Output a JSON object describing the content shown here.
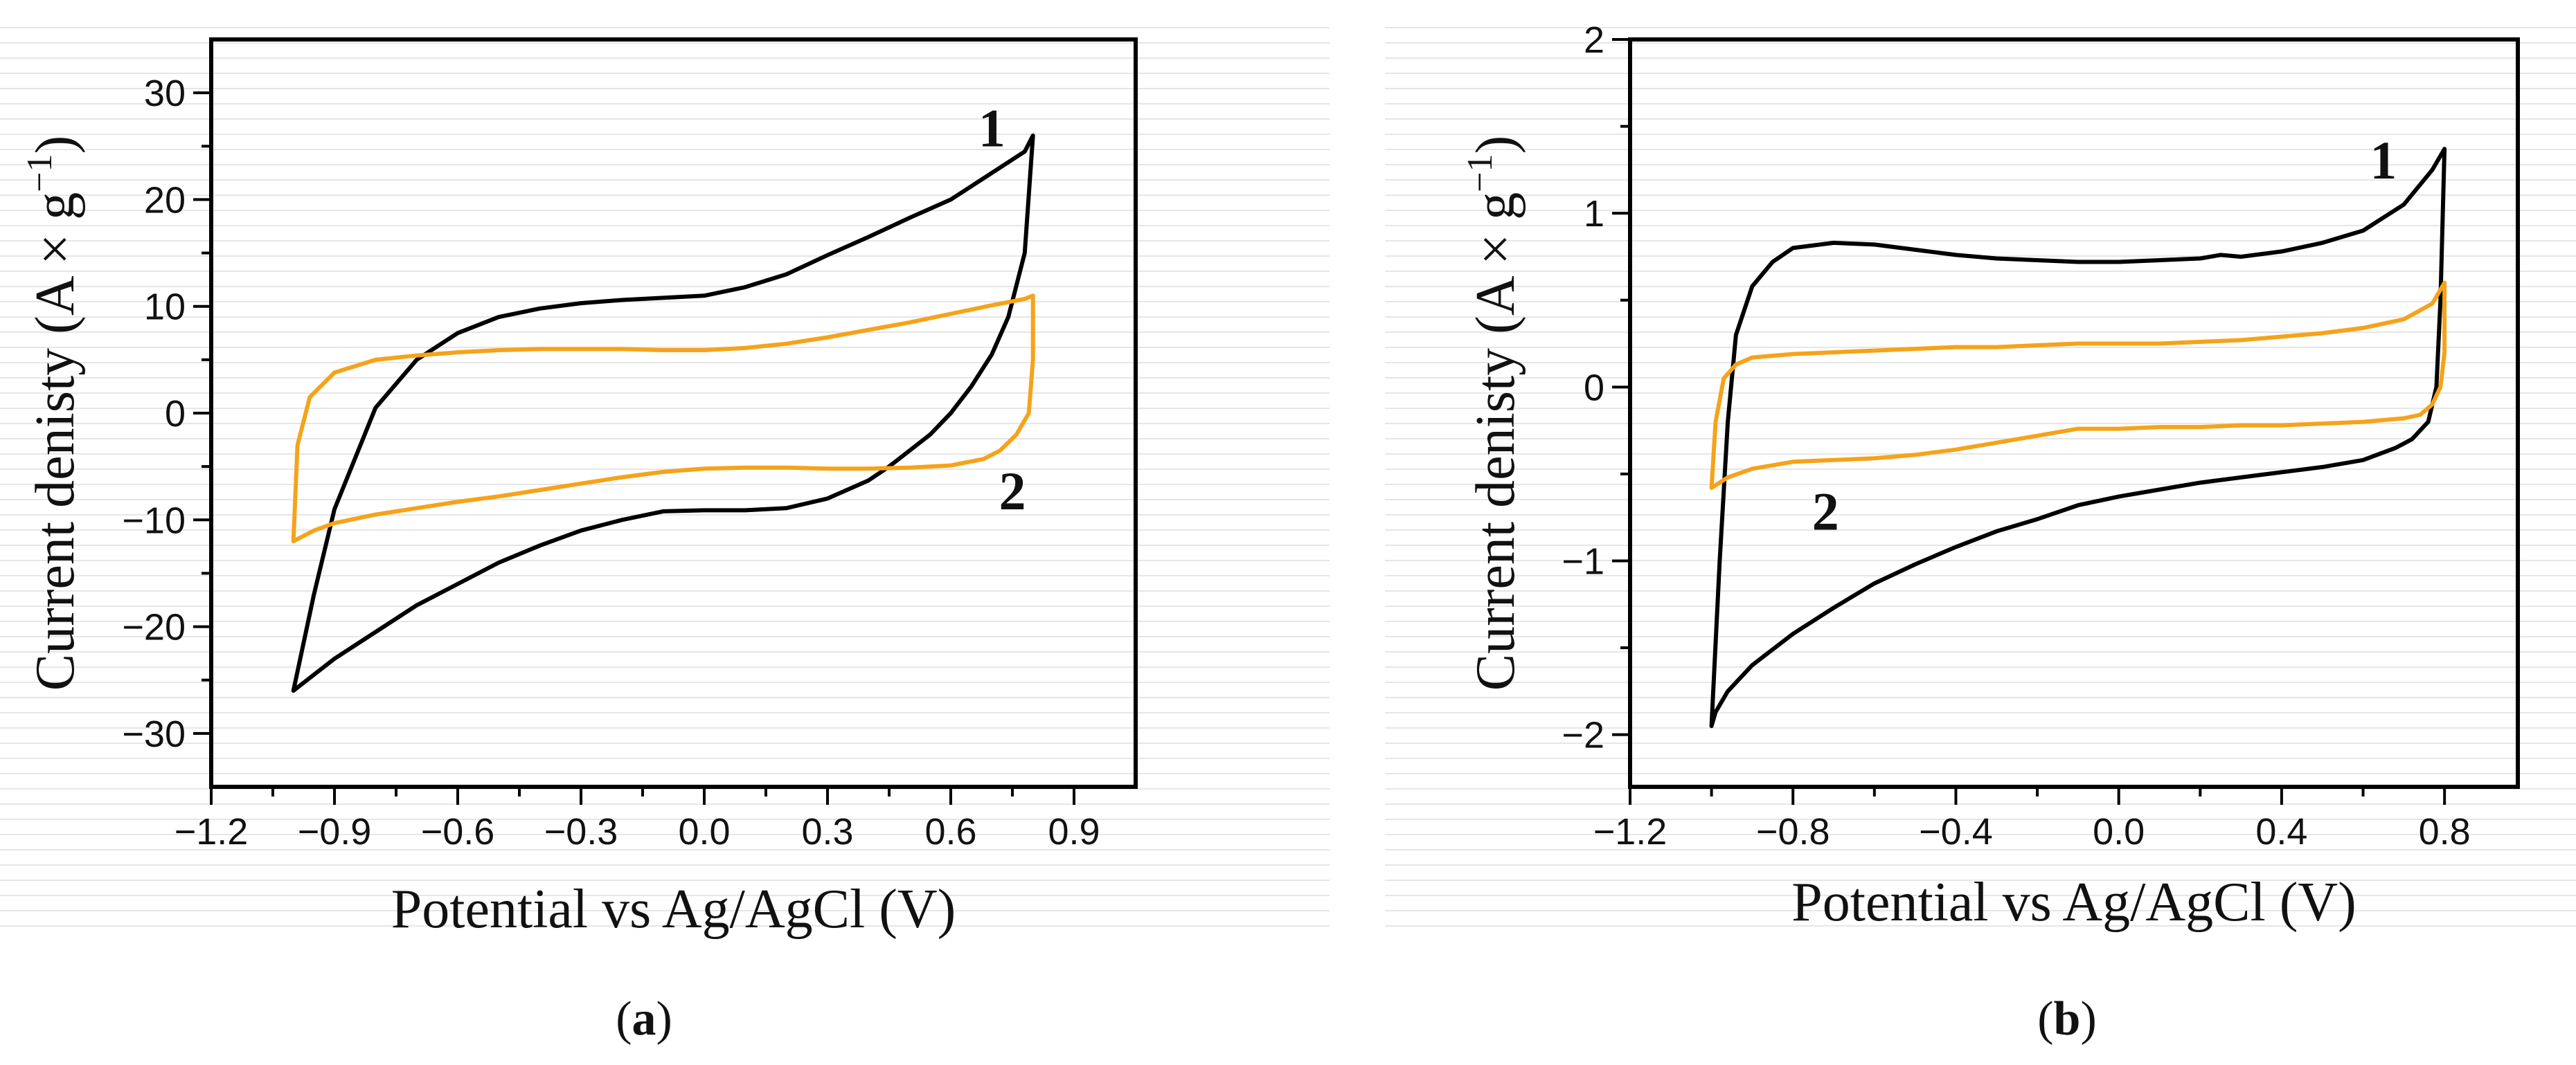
{
  "chart_data": [
    {
      "id": "a",
      "type": "line",
      "caption": "a",
      "xlabel": "Potential vs Ag/AgCl (V)",
      "ylabel_main": "Current denisty (A × g",
      "ylabel_sup": "−1",
      "ylabel_end": ")",
      "xlim": [
        -1.2,
        1.05
      ],
      "ylim": [
        -35,
        35
      ],
      "xticks": [
        -1.2,
        -0.9,
        -0.6,
        -0.3,
        0.0,
        0.3,
        0.6,
        0.9
      ],
      "xtick_labels": [
        "−1.2",
        "−0.9",
        "−0.6",
        "−0.3",
        "0.0",
        "0.3",
        "0.6",
        "0.9"
      ],
      "yticks": [
        -30,
        -20,
        -10,
        0,
        10,
        20,
        30
      ],
      "ytick_labels": [
        "−30",
        "−20",
        "−10",
        "0",
        "10",
        "20",
        "30"
      ],
      "series": [
        {
          "name": "1",
          "color": "#000000",
          "x": [
            -1.0,
            -0.95,
            -0.9,
            -0.8,
            -0.7,
            -0.6,
            -0.5,
            -0.4,
            -0.3,
            -0.2,
            -0.1,
            0.0,
            0.1,
            0.2,
            0.3,
            0.4,
            0.5,
            0.6,
            0.7,
            0.78,
            0.8,
            0.78,
            0.74,
            0.7,
            0.65,
            0.6,
            0.55,
            0.5,
            0.45,
            0.4,
            0.3,
            0.2,
            0.1,
            0.0,
            -0.1,
            -0.2,
            -0.3,
            -0.4,
            -0.5,
            -0.6,
            -0.7,
            -0.8,
            -0.9,
            -0.95,
            -1.0
          ],
          "y": [
            -26,
            -17,
            -9,
            0.5,
            5,
            7.5,
            9,
            9.8,
            10.3,
            10.6,
            10.8,
            11,
            11.8,
            13,
            14.8,
            16.5,
            18.3,
            20,
            22.5,
            24.5,
            26,
            15,
            9,
            5.5,
            2.5,
            0,
            -2,
            -3.5,
            -5,
            -6.3,
            -8,
            -8.9,
            -9.1,
            -9.1,
            -9.2,
            -10,
            -11,
            -12.4,
            -14,
            -16,
            -18,
            -20.5,
            -23,
            -24.5,
            -26
          ]
        },
        {
          "name": "2",
          "color": "#f5a31a",
          "x": [
            -1.0,
            -0.99,
            -0.96,
            -0.9,
            -0.8,
            -0.7,
            -0.6,
            -0.5,
            -0.4,
            -0.3,
            -0.2,
            -0.1,
            0.0,
            0.1,
            0.2,
            0.3,
            0.4,
            0.5,
            0.6,
            0.7,
            0.78,
            0.8,
            0.8,
            0.79,
            0.76,
            0.72,
            0.68,
            0.6,
            0.5,
            0.4,
            0.3,
            0.2,
            0.1,
            0.0,
            -0.1,
            -0.2,
            -0.3,
            -0.4,
            -0.5,
            -0.6,
            -0.7,
            -0.8,
            -0.9,
            -0.95,
            -1.0
          ],
          "y": [
            -12,
            -3,
            1.5,
            3.8,
            5,
            5.4,
            5.7,
            5.9,
            6,
            6,
            6,
            5.9,
            5.9,
            6.1,
            6.5,
            7.1,
            7.8,
            8.5,
            9.3,
            10.1,
            10.7,
            11,
            5,
            0,
            -2,
            -3.5,
            -4.3,
            -4.9,
            -5.1,
            -5.2,
            -5.2,
            -5.1,
            -5.1,
            -5.2,
            -5.5,
            -6,
            -6.6,
            -7.2,
            -7.8,
            -8.3,
            -8.9,
            -9.5,
            -10.3,
            -11,
            -12
          ]
        }
      ],
      "annotations": [
        {
          "text": "1",
          "x": 0.7,
          "y": 25
        },
        {
          "text": "2",
          "x": 0.75,
          "y": -9
        }
      ]
    },
    {
      "id": "b",
      "type": "line",
      "caption": "b",
      "xlabel": "Potential vs Ag/AgCl (V)",
      "ylabel_main": "Current denisty (A × g",
      "ylabel_sup": "−1",
      "ylabel_end": ")",
      "xlim": [
        -1.2,
        0.98
      ],
      "ylim": [
        -2.3,
        2.0
      ],
      "xticks": [
        -1.2,
        -0.8,
        -0.4,
        0.0,
        0.4,
        0.8
      ],
      "xtick_labels": [
        "−1.2",
        "−0.8",
        "−0.4",
        "0.0",
        "0.4",
        "0.8"
      ],
      "yticks": [
        -2,
        -1,
        0,
        1,
        2
      ],
      "ytick_labels": [
        "−2",
        "−1",
        "0",
        "1",
        "2"
      ],
      "series": [
        {
          "name": "1",
          "color": "#000000",
          "x": [
            -1.0,
            -0.98,
            -0.96,
            -0.94,
            -0.9,
            -0.85,
            -0.8,
            -0.7,
            -0.6,
            -0.5,
            -0.4,
            -0.3,
            -0.2,
            -0.1,
            0.0,
            0.1,
            0.2,
            0.25,
            0.3,
            0.4,
            0.5,
            0.6,
            0.7,
            0.77,
            0.8,
            0.79,
            0.78,
            0.76,
            0.72,
            0.68,
            0.6,
            0.5,
            0.4,
            0.3,
            0.2,
            0.1,
            0.0,
            -0.1,
            -0.2,
            -0.3,
            -0.4,
            -0.5,
            -0.6,
            -0.7,
            -0.8,
            -0.9,
            -0.96,
            -0.99,
            -1.0
          ],
          "y": [
            -1.95,
            -1.0,
            -0.2,
            0.3,
            0.58,
            0.72,
            0.8,
            0.83,
            0.82,
            0.79,
            0.76,
            0.74,
            0.73,
            0.72,
            0.72,
            0.73,
            0.74,
            0.76,
            0.75,
            0.78,
            0.83,
            0.9,
            1.05,
            1.25,
            1.37,
            0.5,
            0.0,
            -0.2,
            -0.3,
            -0.35,
            -0.42,
            -0.46,
            -0.49,
            -0.52,
            -0.55,
            -0.59,
            -0.63,
            -0.68,
            -0.76,
            -0.83,
            -0.92,
            -1.02,
            -1.13,
            -1.27,
            -1.42,
            -1.6,
            -1.75,
            -1.87,
            -1.95
          ]
        },
        {
          "name": "2",
          "color": "#f5a31a",
          "x": [
            -1.0,
            -0.99,
            -0.97,
            -0.94,
            -0.9,
            -0.8,
            -0.7,
            -0.6,
            -0.5,
            -0.4,
            -0.3,
            -0.2,
            -0.1,
            0.0,
            0.1,
            0.2,
            0.3,
            0.4,
            0.5,
            0.6,
            0.7,
            0.77,
            0.8,
            0.8,
            0.79,
            0.77,
            0.74,
            0.7,
            0.6,
            0.5,
            0.4,
            0.3,
            0.2,
            0.1,
            0.0,
            -0.1,
            -0.2,
            -0.3,
            -0.4,
            -0.5,
            -0.6,
            -0.7,
            -0.8,
            -0.9,
            -0.96,
            -1.0
          ],
          "y": [
            -0.58,
            -0.2,
            0.05,
            0.13,
            0.17,
            0.19,
            0.2,
            0.21,
            0.22,
            0.23,
            0.23,
            0.24,
            0.25,
            0.25,
            0.25,
            0.26,
            0.27,
            0.29,
            0.31,
            0.34,
            0.39,
            0.48,
            0.6,
            0.2,
            0.0,
            -0.1,
            -0.16,
            -0.18,
            -0.2,
            -0.21,
            -0.22,
            -0.22,
            -0.23,
            -0.23,
            -0.24,
            -0.24,
            -0.28,
            -0.32,
            -0.36,
            -0.39,
            -0.41,
            -0.42,
            -0.43,
            -0.47,
            -0.52,
            -0.58
          ]
        }
      ],
      "annotations": [
        {
          "text": "1",
          "x": 0.65,
          "y": 1.2
        },
        {
          "text": "2",
          "x": -0.72,
          "y": -0.82
        }
      ]
    }
  ]
}
